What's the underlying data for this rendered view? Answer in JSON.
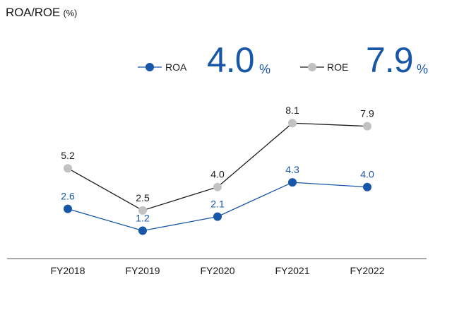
{
  "title": {
    "main": "ROA/ROE",
    "unit": "(%)"
  },
  "legend": {
    "roa": {
      "label": "ROA",
      "value": "4.0",
      "unit": "%"
    },
    "roe": {
      "label": "ROE",
      "value": "7.9",
      "unit": "%"
    }
  },
  "colors": {
    "roa": "#1857a8",
    "roe_marker": "#c2c2c4",
    "roe_line": "#1a1a1a",
    "axis": "#555555",
    "accent": "#1857a8"
  },
  "chart_data": {
    "type": "line",
    "categories": [
      "FY2018",
      "FY2019",
      "FY2020",
      "FY2021",
      "FY2022"
    ],
    "series": [
      {
        "name": "ROA",
        "values": [
          2.6,
          1.2,
          2.1,
          4.3,
          4.0
        ],
        "labels": [
          "2.6",
          "1.2",
          "2.1",
          "4.3",
          "4.0"
        ]
      },
      {
        "name": "ROE",
        "values": [
          5.2,
          2.5,
          4.0,
          8.1,
          7.9
        ],
        "labels": [
          "5.2",
          "2.5",
          "4.0",
          "8.1",
          "7.9"
        ]
      }
    ],
    "title": "ROA/ROE (%)",
    "grid": false,
    "legend_position": "top-right"
  }
}
